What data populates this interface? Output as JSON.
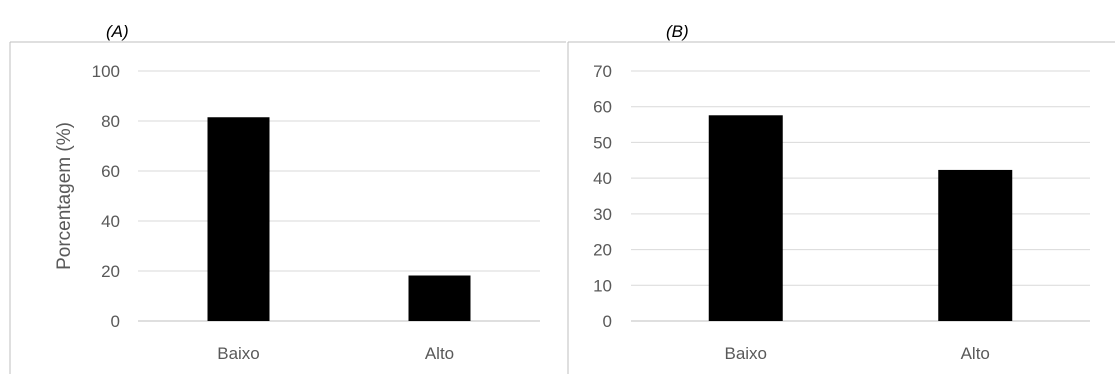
{
  "colors": {
    "bar": "#000000",
    "grid": "#d9d9d9",
    "frame": "#bfbfbf",
    "text": "#595959"
  },
  "chart_data": [
    {
      "type": "bar",
      "panel_label": "(A)",
      "title": "",
      "categories": [
        "Baixo",
        "Alto"
      ],
      "values": [
        81.5,
        18.2
      ],
      "xlabel": "",
      "ylabel": "Porcentagem (%)",
      "ylim": [
        0,
        100
      ],
      "yticks": [
        0,
        20,
        40,
        60,
        80,
        100
      ],
      "grid": true,
      "legend": "none"
    },
    {
      "type": "bar",
      "panel_label": "(B)",
      "title": "",
      "categories": [
        "Baixo",
        "Alto"
      ],
      "values": [
        57.6,
        42.3
      ],
      "xlabel": "",
      "ylabel": "",
      "ylim": [
        0,
        70
      ],
      "yticks": [
        0,
        10,
        20,
        30,
        40,
        50,
        60,
        70
      ],
      "grid": true,
      "legend": "none"
    }
  ]
}
